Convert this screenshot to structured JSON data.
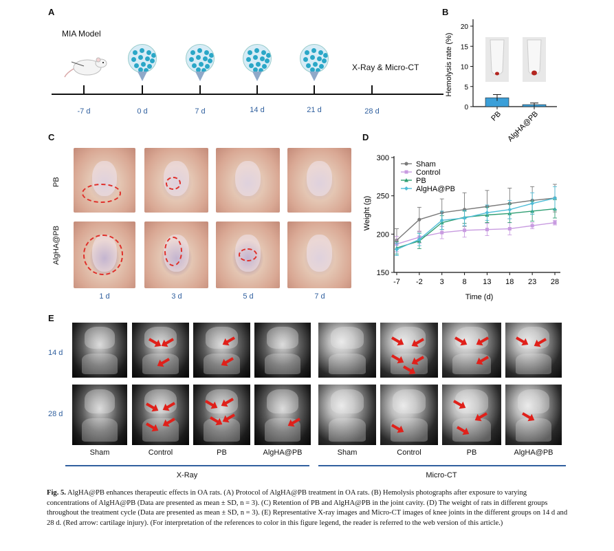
{
  "panel_labels": {
    "A": "A",
    "B": "B",
    "C": "C",
    "D": "D",
    "E": "E"
  },
  "panelA": {
    "model_label": "MIA Model",
    "end_label": "X-Ray & Micro-CT",
    "days": [
      "-7 d",
      "0 d",
      "7 d",
      "14 d",
      "21 d",
      "28 d"
    ]
  },
  "panelB": {
    "ylabel": "Hemolysis rate (%)",
    "yticks": [
      "0",
      "5",
      "10",
      "15",
      "20"
    ],
    "categories": [
      "PB",
      "AlgHA@PB"
    ]
  },
  "panelC": {
    "row_labels": [
      "PB",
      "AlgHA@PB"
    ],
    "col_labels": [
      "1 d",
      "3 d",
      "5 d",
      "7 d"
    ]
  },
  "panelD": {
    "ylabel": "Weight (g)",
    "xlabel": "Time (d)",
    "yticks": [
      "150",
      "200",
      "250",
      "300"
    ],
    "xticks": [
      "-7",
      "-2",
      "3",
      "8",
      "13",
      "18",
      "23",
      "28"
    ],
    "legend": [
      "Sham",
      "Control",
      "PB",
      "AlgHA@PB"
    ]
  },
  "panelE": {
    "row_labels": [
      "14 d",
      "28 d"
    ],
    "col_labels": [
      "Sham",
      "Control",
      "PB",
      "AlgHA@PB",
      "Sham",
      "Control",
      "PB",
      "AlgHA@PB"
    ],
    "group_labels": [
      "X-Ray",
      "Micro-CT"
    ]
  },
  "caption": {
    "fig": "Fig. 5.",
    "text": "AlgHA@PB enhances therapeutic effects in OA rats. (A) Protocol of AlgHA@PB treatment in OA rats. (B) Hemolysis photographs after exposure to varying concentrations of AlgHA@PB (Data are presented as mean ± SD, n = 3). (C) Retention of PB and AlgHA@PB in the joint cavity. (D) The weight of rats in different groups throughout the treatment cycle (Data are presented as mean ± SD, n = 3). (E) Representative X-ray images and Micro-CT images of knee joints in the different groups on 14 d and 28 d. (Red arrow: cartilage injury). (For interpretation of the references to color in this figure legend, the reader is referred to the web version of this article.)"
  },
  "colors": {
    "accent_blue": "#2f5f9e",
    "sham": "#7a7a7a",
    "control": "#c89be0",
    "pb": "#2e9e72",
    "alghapb": "#4dbcd6",
    "bar_fill": "#3b9fd8"
  },
  "chart_data": [
    {
      "type": "bar",
      "ylabel": "Hemolysis rate (%)",
      "categories": [
        "PB",
        "AlgHA@PB"
      ],
      "values": [
        2.2,
        0.5
      ],
      "errors": [
        0.8,
        0.4
      ],
      "ylim": [
        0,
        20
      ]
    },
    {
      "type": "line",
      "xlabel": "Time (d)",
      "ylabel": "Weight (g)",
      "x": [
        -7,
        -2,
        3,
        8,
        13,
        18,
        23,
        28
      ],
      "ylim": [
        150,
        300
      ],
      "legend_position": "top-left",
      "series": [
        {
          "name": "Sham",
          "values": [
            192,
            219,
            228,
            232,
            236,
            240,
            244,
            247
          ],
          "errors": [
            15,
            16,
            18,
            22,
            21,
            20,
            18,
            18
          ]
        },
        {
          "name": "Control",
          "values": [
            187,
            196,
            202,
            205,
            206,
            207,
            211,
            215
          ],
          "errors": [
            10,
            8,
            8,
            9,
            8,
            8,
            4,
            3
          ]
        },
        {
          "name": "PB",
          "values": [
            182,
            191,
            215,
            222,
            225,
            227,
            230,
            233
          ],
          "errors": [
            8,
            10,
            9,
            8,
            10,
            12,
            13,
            12
          ]
        },
        {
          "name": "AlgHA@PB",
          "values": [
            180,
            193,
            218,
            221,
            228,
            232,
            240,
            247
          ],
          "errors": [
            8,
            8,
            12,
            10,
            10,
            12,
            14,
            15
          ]
        }
      ]
    }
  ]
}
